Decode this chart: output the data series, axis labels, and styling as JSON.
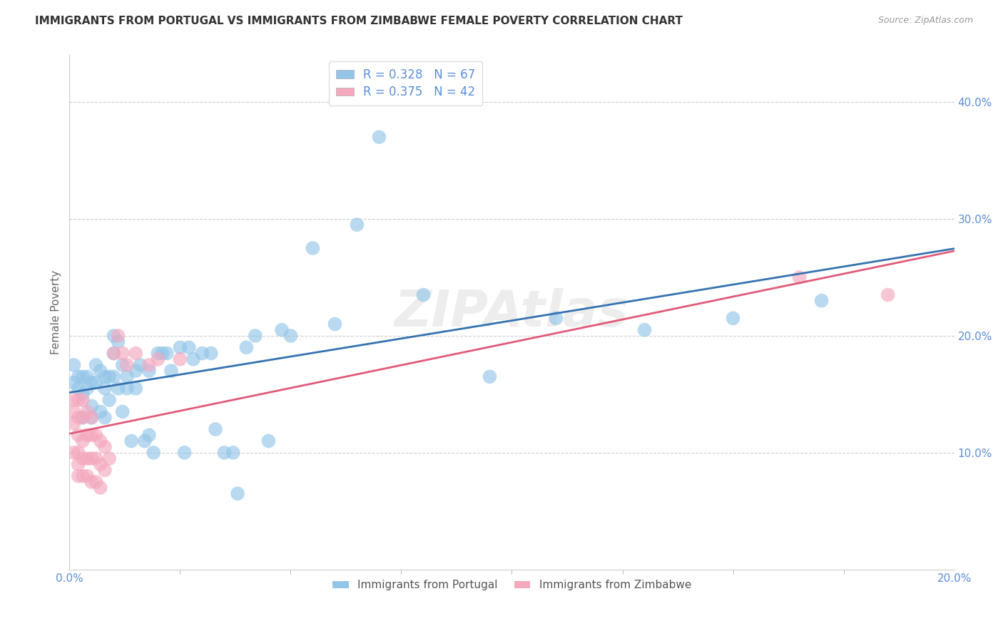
{
  "title": "IMMIGRANTS FROM PORTUGAL VS IMMIGRANTS FROM ZIMBABWE FEMALE POVERTY CORRELATION CHART",
  "source": "Source: ZipAtlas.com",
  "ylabel_label": "Female Poverty",
  "legend_label1": "Immigrants from Portugal",
  "legend_label2": "Immigrants from Zimbabwe",
  "R1": 0.328,
  "N1": 67,
  "R2": 0.375,
  "N2": 42,
  "color1": "#93c5e8",
  "color2": "#f4a8be",
  "line_color1": "#3572b0",
  "line_color2": "#e05a7a",
  "xlim": [
    0.0,
    0.2
  ],
  "ylim": [
    0.0,
    0.44
  ],
  "xtick_positions": [
    0.0,
    0.2
  ],
  "xtick_labels": [
    "0.0%",
    "20.0%"
  ],
  "ytick_positions": [
    0.1,
    0.2,
    0.3,
    0.4
  ],
  "ytick_labels": [
    "10.0%",
    "20.0%",
    "30.0%",
    "40.0%"
  ],
  "portugal_x": [
    0.001,
    0.001,
    0.002,
    0.002,
    0.003,
    0.003,
    0.003,
    0.004,
    0.004,
    0.005,
    0.005,
    0.005,
    0.006,
    0.006,
    0.007,
    0.007,
    0.008,
    0.008,
    0.008,
    0.009,
    0.009,
    0.01,
    0.01,
    0.01,
    0.011,
    0.011,
    0.012,
    0.012,
    0.013,
    0.013,
    0.014,
    0.015,
    0.015,
    0.016,
    0.017,
    0.018,
    0.018,
    0.019,
    0.02,
    0.021,
    0.022,
    0.023,
    0.025,
    0.026,
    0.027,
    0.028,
    0.03,
    0.032,
    0.033,
    0.035,
    0.037,
    0.038,
    0.04,
    0.042,
    0.045,
    0.048,
    0.05,
    0.055,
    0.06,
    0.065,
    0.07,
    0.08,
    0.095,
    0.11,
    0.13,
    0.15,
    0.17
  ],
  "portugal_y": [
    0.175,
    0.16,
    0.165,
    0.155,
    0.165,
    0.15,
    0.13,
    0.165,
    0.155,
    0.16,
    0.14,
    0.13,
    0.175,
    0.16,
    0.17,
    0.135,
    0.165,
    0.155,
    0.13,
    0.165,
    0.145,
    0.2,
    0.185,
    0.165,
    0.195,
    0.155,
    0.175,
    0.135,
    0.165,
    0.155,
    0.11,
    0.17,
    0.155,
    0.175,
    0.11,
    0.17,
    0.115,
    0.1,
    0.185,
    0.185,
    0.185,
    0.17,
    0.19,
    0.1,
    0.19,
    0.18,
    0.185,
    0.185,
    0.12,
    0.1,
    0.1,
    0.065,
    0.19,
    0.2,
    0.11,
    0.205,
    0.2,
    0.275,
    0.21,
    0.295,
    0.37,
    0.235,
    0.165,
    0.215,
    0.205,
    0.215,
    0.23
  ],
  "zimbabwe_x": [
    0.001,
    0.001,
    0.001,
    0.001,
    0.002,
    0.002,
    0.002,
    0.002,
    0.002,
    0.002,
    0.003,
    0.003,
    0.003,
    0.003,
    0.003,
    0.004,
    0.004,
    0.004,
    0.004,
    0.005,
    0.005,
    0.005,
    0.005,
    0.006,
    0.006,
    0.006,
    0.007,
    0.007,
    0.007,
    0.008,
    0.008,
    0.009,
    0.01,
    0.011,
    0.012,
    0.013,
    0.015,
    0.018,
    0.02,
    0.025,
    0.165,
    0.185
  ],
  "zimbabwe_y": [
    0.145,
    0.135,
    0.125,
    0.1,
    0.145,
    0.13,
    0.115,
    0.1,
    0.09,
    0.08,
    0.145,
    0.13,
    0.11,
    0.095,
    0.08,
    0.135,
    0.115,
    0.095,
    0.08,
    0.13,
    0.115,
    0.095,
    0.075,
    0.115,
    0.095,
    0.075,
    0.11,
    0.09,
    0.07,
    0.105,
    0.085,
    0.095,
    0.185,
    0.2,
    0.185,
    0.175,
    0.185,
    0.175,
    0.18,
    0.18,
    0.25,
    0.235
  ]
}
